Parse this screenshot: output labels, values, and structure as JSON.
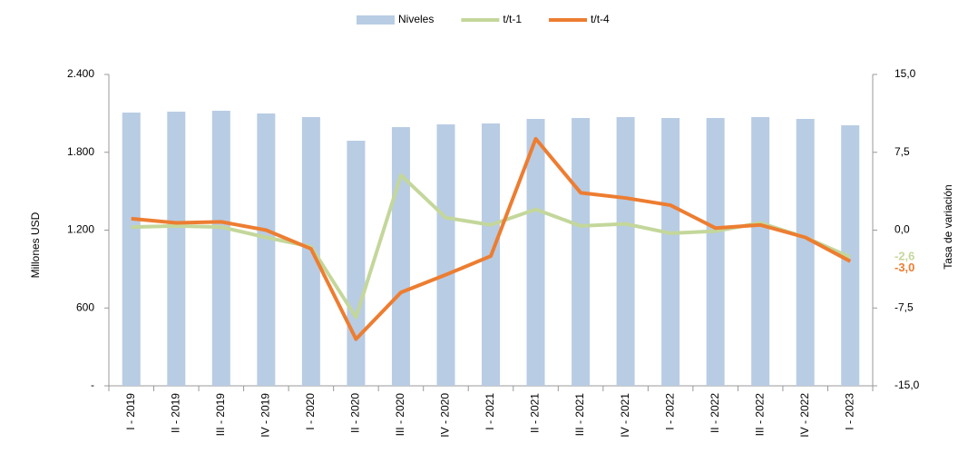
{
  "chart_data": {
    "type": "bar",
    "y_label": "Millones USD",
    "y2_label": "Tasa de variación",
    "categories": [
      "I - 2019",
      "II - 2019",
      "III - 2019",
      "IV - 2019",
      "I - 2020",
      "II - 2020",
      "III - 2020",
      "IV - 2020",
      "I - 2021",
      "II - 2021",
      "III - 2021",
      "IV - 2021",
      "I - 2022",
      "II - 2022",
      "III - 2022",
      "IV - 2022",
      "I - 2023"
    ],
    "series": [
      {
        "name": "Niveles",
        "type": "bar",
        "color": "#b8cce4",
        "values": [
          2106,
          2113,
          2120,
          2099,
          2071,
          1889,
          1994,
          2015,
          2022,
          2057,
          2064,
          2071,
          2064,
          2064,
          2071,
          2057,
          2008
        ]
      },
      {
        "name": "t/t-1",
        "type": "line",
        "axis": "y2",
        "color": "#c4d79b",
        "values": [
          0.3,
          0.4,
          0.3,
          -0.7,
          -1.6,
          -8.4,
          5.3,
          1.2,
          0.5,
          2.0,
          0.4,
          0.6,
          -0.3,
          -0.1,
          0.7,
          -0.7,
          -2.6
        ],
        "value_labels": [
          null,
          null,
          null,
          null,
          null,
          null,
          null,
          null,
          null,
          null,
          null,
          null,
          null,
          null,
          null,
          null,
          "-2,6"
        ]
      },
      {
        "name": "t/t-4",
        "type": "line",
        "axis": "y2",
        "color": "#ed7d31",
        "values": [
          1.1,
          0.7,
          0.8,
          0.0,
          -1.8,
          -10.5,
          -6.0,
          -4.3,
          -2.5,
          8.8,
          3.6,
          3.1,
          2.4,
          0.2,
          0.5,
          -0.7,
          -3.0
        ],
        "value_labels": [
          null,
          null,
          null,
          null,
          null,
          null,
          null,
          null,
          null,
          null,
          null,
          null,
          null,
          null,
          null,
          null,
          "-3,0"
        ]
      }
    ],
    "ylim": [
      0,
      2400
    ],
    "yticks": [
      {
        "value": 0,
        "label": "-"
      },
      600,
      {
        "value": 1200,
        "label": "1.200"
      },
      {
        "value": 1800,
        "label": "1.800"
      },
      {
        "value": 2400,
        "label": "2.400"
      }
    ],
    "y2lim": [
      -15,
      15
    ],
    "y2ticks": [
      {
        "value": -15,
        "label": "-15,0"
      },
      {
        "value": -7.5,
        "label": "-7,5"
      },
      {
        "value": 0,
        "label": "0,0"
      },
      {
        "value": 7.5,
        "label": "7,5"
      },
      {
        "value": 15,
        "label": "15,0"
      }
    ],
    "legend": "top"
  }
}
